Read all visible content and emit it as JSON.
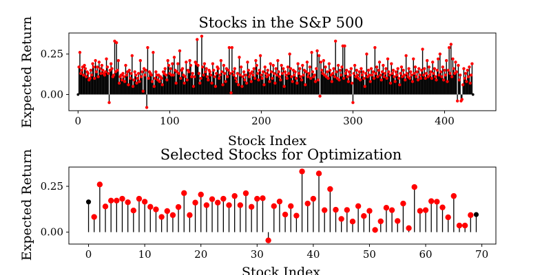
{
  "chart_data": [
    {
      "type": "stem",
      "title": "Stocks in the S&P 500",
      "xlabel": "Stock Index",
      "ylabel": "Expected Return",
      "xlim": [
        -10,
        456
      ],
      "ylim": [
        -0.1,
        0.38
      ],
      "xticks": [
        "0",
        "100",
        "200",
        "300",
        "400"
      ],
      "xtick_values": [
        0,
        100,
        200,
        300,
        400
      ],
      "yticks": [
        "0.00",
        "0.25"
      ],
      "ytick_values": [
        0,
        0.25
      ],
      "n_points": 436,
      "marker_color": "#ff0000",
      "stem_color": "#000000",
      "values": [
        0.0,
        0.17,
        0.26,
        0.13,
        0.15,
        0.17,
        0.12,
        0.18,
        0.16,
        0.11,
        0.14,
        0.13,
        0.09,
        0.1,
        0.15,
        0.12,
        0.19,
        0.17,
        0.1,
        0.21,
        0.14,
        0.17,
        0.11,
        0.2,
        0.16,
        0.13,
        0.18,
        0.15,
        0.13,
        0.12,
        0.14,
        0.22,
        0.17,
        0.13,
        -0.05,
        0.15,
        0.19,
        0.16,
        0.11,
        0.12,
        0.33,
        0.14,
        0.32,
        0.15,
        0.21,
        0.07,
        0.11,
        0.12,
        0.09,
        0.13,
        0.11,
        0.08,
        0.18,
        0.12,
        0.14,
        0.06,
        0.15,
        0.1,
        0.13,
        0.24,
        0.05,
        0.09,
        0.14,
        0.12,
        0.07,
        0.1,
        0.13,
        0.08,
        0.21,
        0.11,
        0.14,
        0.02,
        0.16,
        0.12,
        0.15,
        -0.08,
        0.29,
        0.1,
        0.14,
        0.13,
        0.12,
        0.08,
        0.26,
        0.05,
        0.1,
        0.14,
        0.12,
        0.09,
        0.12,
        0.08,
        0.11,
        0.1,
        0.06,
        0.14,
        0.13,
        0.16,
        0.12,
        0.09,
        0.21,
        0.18,
        0.13,
        0.16,
        0.12,
        0.19,
        0.12,
        0.23,
        0.15,
        0.07,
        0.14,
        0.19,
        0.13,
        0.27,
        0.1,
        0.15,
        0.16,
        0.12,
        0.07,
        0.11,
        0.2,
        0.09,
        0.15,
        0.14,
        0.21,
        0.18,
        0.11,
        0.13,
        0.05,
        0.11,
        0.2,
        0.19,
        0.34,
        0.18,
        0.13,
        0.07,
        0.1,
        0.36,
        0.17,
        0.12,
        0.19,
        0.14,
        0.16,
        0.11,
        0.09,
        0.15,
        0.14,
        0.12,
        0.07,
        0.19,
        0.15,
        0.11,
        0.05,
        0.13,
        0.17,
        0.16,
        0.1,
        0.12,
        0.21,
        0.14,
        0.06,
        0.18,
        0.13,
        0.08,
        0.16,
        0.11,
        0.15,
        0.29,
        0.13,
        0.01,
        0.29,
        0.14,
        0.12,
        0.16,
        0.1,
        0.08,
        0.13,
        0.06,
        0.23,
        0.12,
        0.17,
        0.05,
        0.11,
        0.14,
        0.09,
        0.12,
        0.07,
        0.2,
        0.15,
        0.11,
        0.13,
        0.08,
        0.14,
        0.12,
        0.16,
        0.1,
        0.21,
        0.18,
        0.13,
        0.09,
        0.15,
        0.24,
        0.12,
        0.1,
        0.14,
        0.06,
        0.17,
        0.13,
        0.11,
        0.15,
        0.12,
        0.08,
        0.19,
        0.14,
        0.1,
        0.18,
        0.13,
        0.07,
        0.16,
        0.12,
        0.21,
        0.14,
        0.11,
        0.09,
        0.18,
        0.13,
        0.16,
        0.05,
        0.14,
        0.12,
        0.1,
        0.17,
        0.13,
        0.25,
        0.16,
        0.11,
        0.08,
        0.15,
        0.12,
        0.14,
        0.1,
        0.07,
        0.19,
        0.13,
        0.16,
        0.11,
        0.09,
        0.18,
        0.12,
        0.15,
        0.06,
        0.14,
        0.2,
        0.11,
        0.13,
        0.17,
        0.1,
        0.26,
        0.14,
        0.11,
        0.12,
        0.08,
        0.16,
        0.27,
        0.09,
        0.24,
        -0.01,
        0.2,
        0.15,
        0.13,
        0.21,
        0.12,
        0.17,
        0.11,
        0.14,
        0.1,
        0.19,
        0.15,
        0.12,
        0.08,
        0.13,
        0.16,
        0.11,
        0.33,
        0.14,
        0.1,
        0.18,
        0.09,
        0.15,
        0.12,
        0.17,
        0.3,
        0.1,
        0.3,
        0.13,
        0.15,
        0.11,
        0.08,
        0.14,
        0.12,
        0.16,
        0.07,
        -0.05,
        0.13,
        0.18,
        0.11,
        0.15,
        0.12,
        0.1,
        0.14,
        0.09,
        0.16,
        0.12,
        0.14,
        0.1,
        0.05,
        0.13,
        0.25,
        0.11,
        0.15,
        0.12,
        0.08,
        0.16,
        0.12,
        0.14,
        0.1,
        0.29,
        0.13,
        0.17,
        0.11,
        0.15,
        0.2,
        0.12,
        0.09,
        0.14,
        0.18,
        0.11,
        0.13,
        0.16,
        0.1,
        0.22,
        0.14,
        0.12,
        0.07,
        0.19,
        0.13,
        0.15,
        0.11,
        0.08,
        0.14,
        0.12,
        0.16,
        0.1,
        0.06,
        0.13,
        0.17,
        0.11,
        0.15,
        0.12,
        0.09,
        0.24,
        0.13,
        0.11,
        0.16,
        0.1,
        0.14,
        0.12,
        0.08,
        0.22,
        0.13,
        0.17,
        0.11,
        0.14,
        0.09,
        0.16,
        0.12,
        0.1,
        0.15,
        0.28,
        0.12,
        0.16,
        0.1,
        0.13,
        0.21,
        0.11,
        0.17,
        0.12,
        0.14,
        0.1,
        0.2,
        0.13,
        0.16,
        0.11,
        0.09,
        0.15,
        0.22,
        0.12,
        0.25,
        0.14,
        0.11,
        0.17,
        0.09,
        0.15,
        0.12,
        0.21,
        0.08,
        0.15,
        0.29,
        0.13,
        0.31,
        0.11,
        0.22,
        0.16,
        0.13,
        0.2,
        0.14,
        -0.04,
        0.18,
        0.09,
        0.12,
        -0.04,
        -0.03,
        0.06,
        0.16,
        0.1,
        0.13,
        0.08,
        0.15,
        0.11,
        0.17,
        0.07,
        0.12,
        0.19,
        0.0
      ],
      "first_last_marker_color": "#000000"
    },
    {
      "type": "stem",
      "title": "Selected Stocks for Optimization",
      "xlabel": "Stock Index",
      "ylabel": "Expected Return",
      "xlim": [
        -3.5,
        72.5
      ],
      "ylim": [
        -0.065,
        0.355
      ],
      "xticks": [
        "0",
        "10",
        "20",
        "30",
        "40",
        "50",
        "60",
        "70"
      ],
      "xtick_values": [
        0,
        10,
        20,
        30,
        40,
        50,
        60,
        70
      ],
      "yticks": [
        "0.00",
        "0.25"
      ],
      "ytick_values": [
        0,
        0.25
      ],
      "marker_color": "#ff0000",
      "stem_color": "#000000",
      "first_last_marker_color": "#000000",
      "values": [
        0.165,
        0.083,
        0.26,
        0.14,
        0.172,
        0.172,
        0.182,
        0.163,
        0.118,
        0.182,
        0.166,
        0.138,
        0.124,
        0.083,
        0.115,
        0.093,
        0.137,
        0.213,
        0.093,
        0.161,
        0.205,
        0.147,
        0.18,
        0.161,
        0.182,
        0.147,
        0.197,
        0.147,
        0.212,
        0.138,
        0.182,
        0.185,
        -0.045,
        0.142,
        0.167,
        0.096,
        0.142,
        0.09,
        0.331,
        0.156,
        0.182,
        0.32,
        0.12,
        0.235,
        0.122,
        0.072,
        0.121,
        0.058,
        0.142,
        0.088,
        0.116,
        0.012,
        0.059,
        0.133,
        0.12,
        0.061,
        0.156,
        0.022,
        0.246,
        0.116,
        0.12,
        0.169,
        0.166,
        0.135,
        0.081,
        0.197,
        0.036,
        0.036,
        0.093,
        0.096
      ]
    }
  ]
}
